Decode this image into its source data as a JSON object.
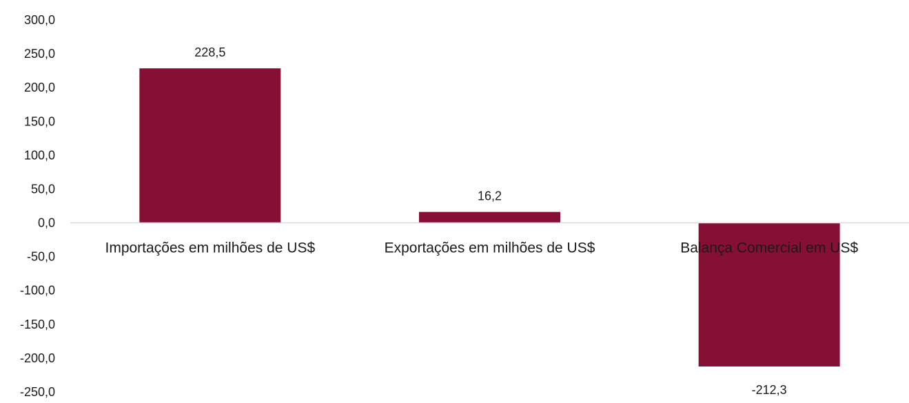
{
  "chart_data": {
    "type": "bar",
    "title": "",
    "xlabel": "",
    "ylabel": "",
    "categories": [
      "Importações em milhões de US$",
      "Exportações em milhões de US$",
      "Balança Comercial em US$"
    ],
    "values": [
      228.5,
      16.2,
      -212.3
    ],
    "data_labels": [
      "228,5",
      "16,2",
      "-212,3"
    ],
    "ylim": [
      -250,
      300
    ],
    "yticks": [
      300,
      250,
      200,
      150,
      100,
      50,
      0,
      -50,
      -100,
      -150,
      -200,
      -250
    ],
    "ytick_labels": [
      "300,0",
      "250,0",
      "200,0",
      "150,0",
      "100,0",
      "50,0",
      "0,0",
      "-50,0",
      "-100,0",
      "-150,0",
      "-200,0",
      "-250,0"
    ],
    "grid": false,
    "legend": "none",
    "colors": {
      "bar": "#861033",
      "axis_line": "#d9d9d9"
    }
  }
}
